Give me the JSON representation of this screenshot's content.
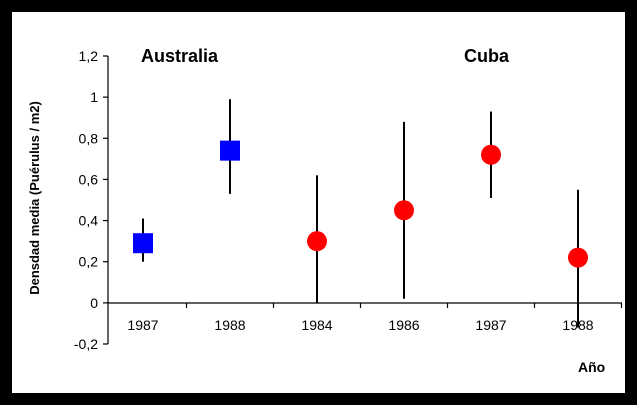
{
  "chart_data": {
    "type": "scatter",
    "title": "",
    "xlabel": "Año",
    "ylabel": "Densdad media (Puérulus / m2)",
    "ylim": [
      -0.2,
      1.2
    ],
    "yticks": [
      "1,2",
      "1",
      "0,8",
      "0,6",
      "0,4",
      "0,2",
      "0",
      "-0,2"
    ],
    "categories": [
      "1987",
      "1988",
      "1984",
      "1986",
      "1987",
      "1988"
    ],
    "groups": [
      {
        "label": "Australia",
        "marker": "square",
        "color": "#0000ff"
      },
      {
        "label": "Cuba",
        "marker": "circle",
        "color": "#ff0000"
      }
    ],
    "points": [
      {
        "group": "Australia",
        "category": "1987",
        "value": 0.29,
        "low": 0.2,
        "high": 0.41
      },
      {
        "group": "Australia",
        "category": "1988",
        "value": 0.74,
        "low": 0.53,
        "high": 0.99
      },
      {
        "group": "Cuba",
        "category": "1984",
        "value": 0.3,
        "low": 0.0,
        "high": 0.62
      },
      {
        "group": "Cuba",
        "category": "1986",
        "value": 0.45,
        "low": 0.02,
        "high": 0.88
      },
      {
        "group": "Cuba",
        "category": "1987",
        "value": 0.72,
        "low": 0.51,
        "high": 0.93
      },
      {
        "group": "Cuba",
        "category": "1988",
        "value": 0.22,
        "low": -0.12,
        "high": 0.55
      }
    ],
    "grid": false,
    "error_bars": true
  }
}
